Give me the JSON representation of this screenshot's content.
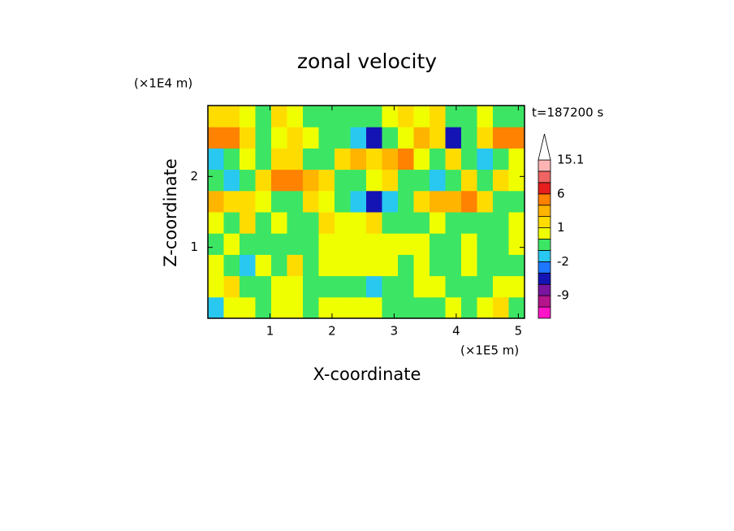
{
  "chart_data": {
    "type": "contour",
    "title": "zonal velocity",
    "x_label": "X-coordinate",
    "y_label": "Z-coordinate",
    "x_unit": "(×1E5 m)",
    "y_unit": "(×1E4 m)",
    "time_label": "t=187200 s",
    "xlim": [
      0,
      5.1
    ],
    "ylim": [
      0,
      3
    ],
    "xticks": [
      1,
      2,
      3,
      4,
      5
    ],
    "yticks": [
      1,
      2
    ],
    "levels": [
      -12,
      -9,
      -6,
      -3,
      -2,
      -1,
      0,
      1,
      2,
      3,
      6,
      9,
      12,
      15.1
    ],
    "colors": [
      "#ff14c8",
      "#b4148c",
      "#7814a0",
      "#1414b4",
      "#1e78ff",
      "#28c8f0",
      "#3ce664",
      "#f0ff00",
      "#ffdc00",
      "#ffb400",
      "#ff8200",
      "#e61e1e",
      "#f06464",
      "#ffb4b4",
      "#ffffff"
    ],
    "colorbar_ticks": [
      15.1,
      6,
      1,
      -2,
      -9
    ],
    "values": [
      [
        -1.5,
        0.5,
        0.5,
        -0.5,
        0.5,
        0.5,
        -0.5,
        0.5,
        0.5,
        0.5,
        0.5,
        -0.5,
        -0.5,
        -0.5,
        -0.5,
        0.5,
        -0.5,
        0.5,
        1.5,
        -0.5
      ],
      [
        0.5,
        1.5,
        -0.5,
        -0.5,
        0.5,
        0.5,
        -0.5,
        -0.5,
        -0.5,
        -0.5,
        -1.5,
        -0.5,
        -0.5,
        0.5,
        0.5,
        -0.5,
        -0.5,
        -0.5,
        0.5,
        0.5
      ],
      [
        0.5,
        -0.5,
        -1.5,
        0.5,
        -0.5,
        1.5,
        -0.5,
        0.5,
        0.5,
        0.5,
        0.5,
        0.5,
        -0.5,
        0.5,
        -0.5,
        -0.5,
        0.5,
        -0.5,
        -0.5,
        -0.5
      ],
      [
        -0.5,
        0.5,
        -0.5,
        -0.5,
        -0.5,
        -0.5,
        -0.5,
        0.5,
        0.5,
        0.5,
        0.5,
        0.5,
        0.5,
        0.5,
        -0.5,
        -0.5,
        0.5,
        -0.5,
        -0.5,
        0.5
      ],
      [
        0.5,
        -0.5,
        1.5,
        -0.5,
        0.5,
        -0.5,
        -0.5,
        1.5,
        0.5,
        0.5,
        1.5,
        -0.5,
        -0.5,
        -0.5,
        0.5,
        -0.5,
        -0.5,
        -0.5,
        -0.5,
        0.5
      ],
      [
        2.5,
        1.5,
        1.5,
        0.5,
        -0.5,
        -0.5,
        1.5,
        0.5,
        -0.5,
        -1.5,
        -4,
        -1.5,
        -0.5,
        1.5,
        2.5,
        2.5,
        4,
        1.5,
        -0.5,
        -0.5
      ],
      [
        -0.5,
        -1.5,
        -0.5,
        1.5,
        4,
        4,
        2.5,
        1.5,
        -0.5,
        -0.5,
        0.5,
        1.5,
        -0.5,
        -0.5,
        -1.5,
        -0.5,
        1.5,
        -0.5,
        1.5,
        0.5
      ],
      [
        -1.5,
        -0.5,
        0.5,
        -0.5,
        1.5,
        1.5,
        -0.5,
        -0.5,
        1.5,
        2.5,
        1.5,
        2.5,
        4,
        0.5,
        -0.5,
        1.5,
        -0.5,
        -1.5,
        -0.5,
        0.5
      ],
      [
        4,
        4,
        1.5,
        -0.5,
        0.5,
        1.5,
        0.5,
        -0.5,
        -0.5,
        -1.5,
        -4,
        -0.5,
        0.5,
        2.5,
        1.5,
        -4,
        -0.5,
        1.5,
        4,
        4
      ],
      [
        1.5,
        1.5,
        0.5,
        -0.5,
        1.5,
        0.5,
        -0.5,
        -0.5,
        -0.5,
        -0.5,
        -0.5,
        0.5,
        1.5,
        0.5,
        1.5,
        -0.5,
        -0.5,
        0.5,
        -0.5,
        -0.5
      ]
    ]
  }
}
